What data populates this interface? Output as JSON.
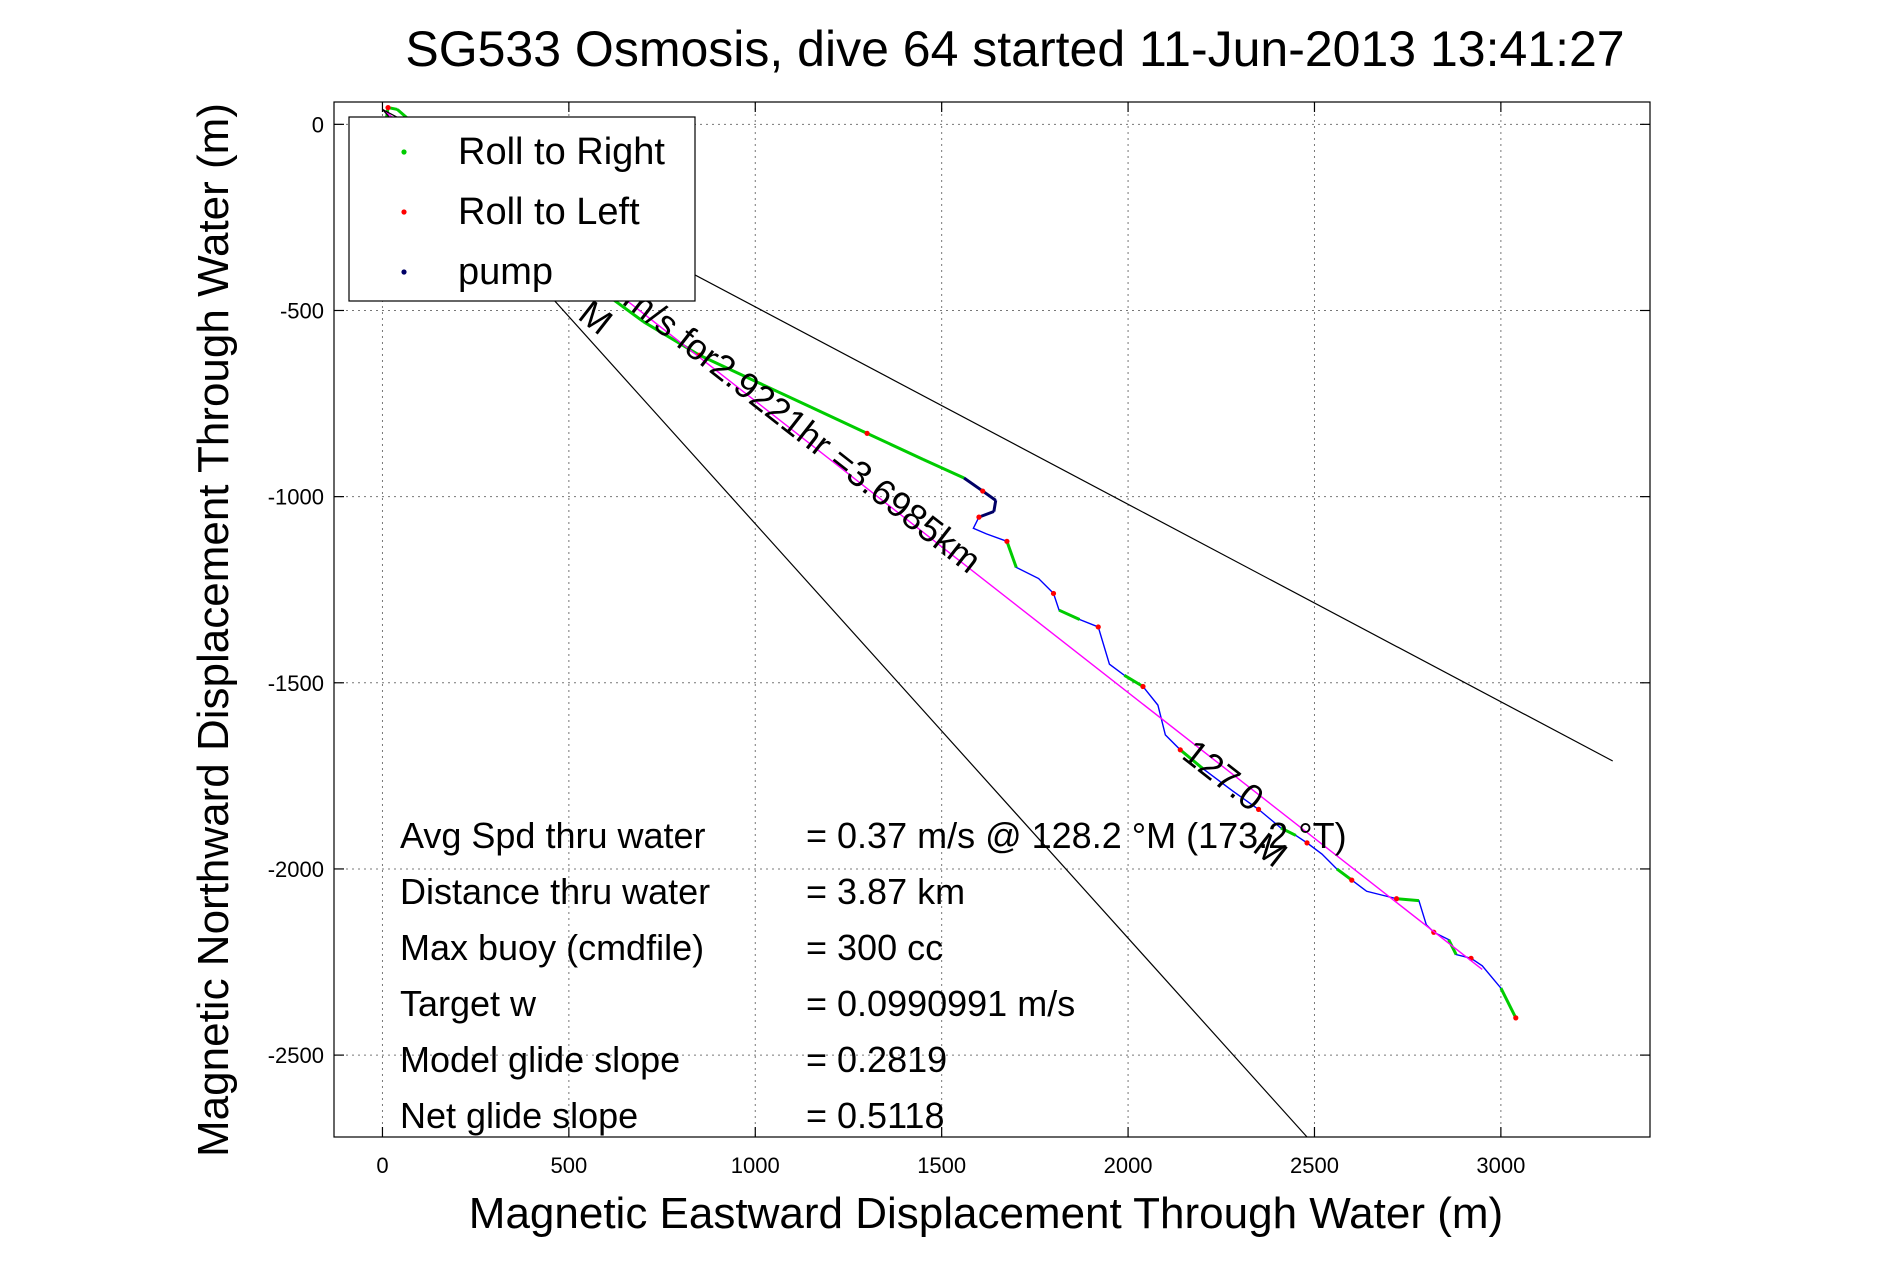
{
  "chart_data": {
    "type": "line",
    "title": "SG533 Osmosis, dive 64 started 11-Jun-2013 13:41:27",
    "xlabel": "Magnetic Eastward Displacement Through Water (m)",
    "ylabel": "Magnetic Northward Displacement Through Water (m)",
    "xlim": [
      -130,
      3400
    ],
    "ylim": [
      -2720,
      60
    ],
    "xticks": [
      0,
      500,
      1000,
      1500,
      2000,
      2500,
      3000
    ],
    "yticks": [
      0,
      -500,
      -1000,
      -1500,
      -2000,
      -2500
    ],
    "xtick_labels": [
      "0",
      "500",
      "1000",
      "1500",
      "2000",
      "2500",
      "3000"
    ],
    "ytick_labels": [
      "0",
      "-500",
      "-1000",
      "-1500",
      "-2000",
      "-2500"
    ],
    "grid": true,
    "legend_position": "top-left",
    "legend": [
      {
        "label": "Roll to Right",
        "color": "#00cc00"
      },
      {
        "label": "Roll to Left",
        "color": "#ff0000"
      },
      {
        "label": "pump",
        "color": "#000066"
      }
    ],
    "colors": {
      "track": "#0000ff",
      "roll_right": "#00cc00",
      "roll_left": "#ff0000",
      "pump": "#000066",
      "course_line": "#ff00ff",
      "envelope": "#000000"
    },
    "series": [
      {
        "role": "track",
        "x": [
          5,
          15,
          40,
          80,
          150,
          250,
          350,
          450,
          550,
          700,
          850,
          1000,
          1150,
          1300,
          1450,
          1560,
          1610,
          1645,
          1640,
          1600,
          1585,
          1620,
          1675,
          1700,
          1760,
          1800,
          1815,
          1870,
          1920,
          1950,
          1990,
          2040,
          2080,
          2100,
          2140,
          2200,
          2280,
          2350,
          2410,
          2450,
          2480,
          2520,
          2560,
          2600,
          2640,
          2680,
          2720,
          2780,
          2800,
          2820,
          2860,
          2880,
          2920,
          2950,
          3000,
          3040
        ],
        "y": [
          -20,
          45,
          40,
          5,
          -60,
          -150,
          -250,
          -330,
          -420,
          -530,
          -620,
          -690,
          -760,
          -830,
          -900,
          -950,
          -985,
          -1010,
          -1040,
          -1055,
          -1085,
          -1100,
          -1120,
          -1190,
          -1220,
          -1260,
          -1305,
          -1330,
          -1350,
          -1450,
          -1480,
          -1510,
          -1560,
          -1640,
          -1680,
          -1730,
          -1790,
          -1840,
          -1890,
          -1910,
          -1930,
          -1960,
          -2000,
          -2030,
          -2060,
          -2070,
          -2080,
          -2085,
          -2150,
          -2170,
          -2190,
          -2230,
          -2240,
          -2260,
          -2320,
          -2400
        ]
      },
      {
        "role": "course",
        "x": [
          0,
          2950
        ],
        "y": [
          40,
          -2270
        ]
      },
      {
        "role": "envelope",
        "x": [
          0,
          3300
        ],
        "y": [
          40,
          -1710
        ]
      },
      {
        "role": "envelope",
        "x": [
          0,
          2480
        ],
        "y": [
          40,
          -2720
        ]
      }
    ],
    "annotations": [
      {
        "text": "M",
        "x": 520,
        "y": -520,
        "rotate": 38
      },
      {
        "text": "m/s for2.9221hr =3.6985km",
        "x": 640,
        "y": -480,
        "rotate": 38
      },
      {
        "text": "127.0",
        "x": 2140,
        "y": -1700,
        "rotate": 38
      },
      {
        "text": "M",
        "x": 2330,
        "y": -1950,
        "rotate": 38
      }
    ],
    "stats": [
      {
        "label": "Avg Spd thru water",
        "value": "=  0.37 m/s @ 128.2 °M (173.2 °T)"
      },
      {
        "label": "Distance thru water",
        "value": "=  3.87 km"
      },
      {
        "label": "Max buoy (cmdfile)",
        "value": "= 300 cc"
      },
      {
        "label": "Target w",
        "value": "= 0.0990991 m/s"
      },
      {
        "label": "Model glide slope",
        "value": "= 0.2819"
      },
      {
        "label": "Net glide slope",
        "value": "= 0.5118"
      }
    ]
  }
}
